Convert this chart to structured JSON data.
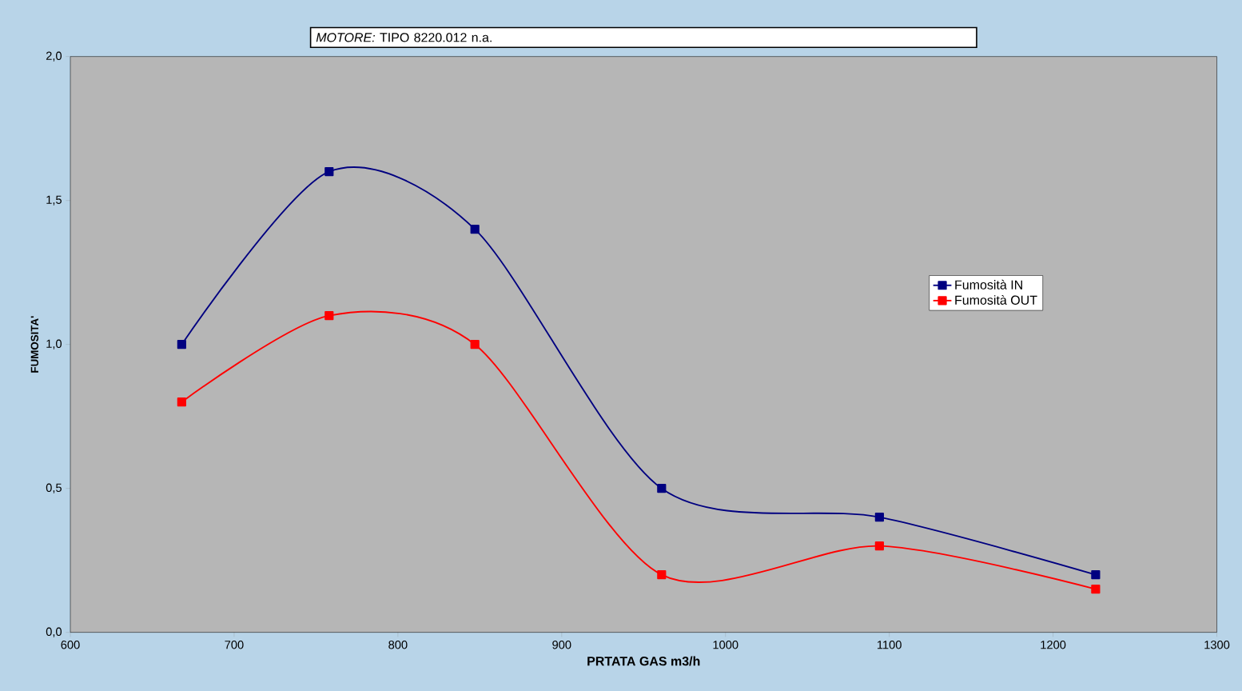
{
  "chart_data": {
    "type": "line",
    "title": "*MOTORE:* TIPO 8220.012 n.a.",
    "xlabel": "PRTATA GAS m3/h",
    "ylabel": "FUMOSITA'",
    "xlim": [
      600,
      1300
    ],
    "xticks": [
      600,
      700,
      800,
      900,
      1000,
      1100,
      1200,
      1300
    ],
    "ylim": [
      0,
      2
    ],
    "yticks": [
      {
        "value": 0,
        "label": "0,0"
      },
      {
        "value": 0.5,
        "label": "0,5"
      },
      {
        "value": 1,
        "label": "1,0"
      },
      {
        "value": 1.5,
        "label": "1,5"
      },
      {
        "value": 2,
        "label": "2,0"
      }
    ],
    "x": [
      668,
      758,
      847,
      961,
      1094,
      1226
    ],
    "series": [
      {
        "name": "Fumosità IN",
        "color": "#000080",
        "values": [
          1.0,
          1.6,
          1.4,
          0.5,
          0.4,
          0.2
        ]
      },
      {
        "name": "Fumosità OUT",
        "color": "#ff0000",
        "values": [
          0.8,
          1.1,
          1.0,
          0.2,
          0.3,
          0.15
        ]
      }
    ],
    "legend": "right",
    "marker": "square",
    "line_style": "solid",
    "grid": false
  }
}
